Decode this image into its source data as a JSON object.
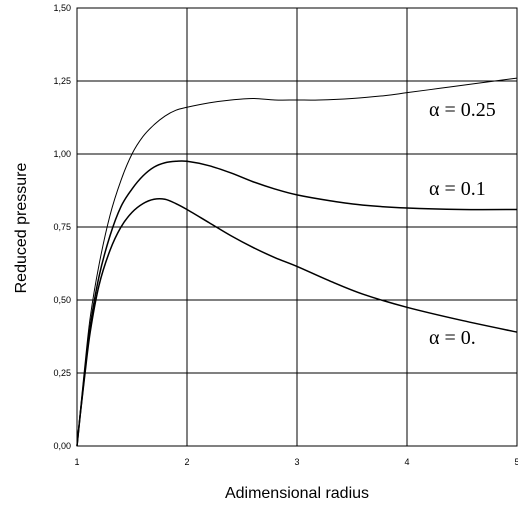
{
  "chart_data": {
    "type": "line",
    "title": "",
    "xlabel": "Adimensional radius",
    "ylabel": "Reduced pressure",
    "xlim": [
      1,
      5
    ],
    "ylim": [
      0,
      1.5
    ],
    "grid": true,
    "x_ticks": [
      {
        "value": 1,
        "label": "1"
      },
      {
        "value": 2,
        "label": "2"
      },
      {
        "value": 3,
        "label": "3"
      },
      {
        "value": 4,
        "label": "4"
      },
      {
        "value": 5,
        "label": "5"
      }
    ],
    "y_ticks": [
      {
        "value": 0,
        "label": "0,00"
      },
      {
        "value": 0.25,
        "label": "0,25"
      },
      {
        "value": 0.5,
        "label": "0,50"
      },
      {
        "value": 0.75,
        "label": "0,75"
      },
      {
        "value": 1.0,
        "label": "1,00"
      },
      {
        "value": 1.25,
        "label": "1,25"
      },
      {
        "value": 1.5,
        "label": "1,50"
      }
    ],
    "series": [
      {
        "name": "α = 0.25",
        "label_at": [
          4.2,
          1.13
        ],
        "points": [
          [
            1.0,
            0.0
          ],
          [
            1.03,
            0.12
          ],
          [
            1.07,
            0.27
          ],
          [
            1.12,
            0.44
          ],
          [
            1.2,
            0.62
          ],
          [
            1.3,
            0.79
          ],
          [
            1.4,
            0.91
          ],
          [
            1.5,
            1.0
          ],
          [
            1.6,
            1.06
          ],
          [
            1.7,
            1.1
          ],
          [
            1.8,
            1.13
          ],
          [
            1.9,
            1.15
          ],
          [
            2.0,
            1.16
          ],
          [
            2.2,
            1.175
          ],
          [
            2.4,
            1.185
          ],
          [
            2.6,
            1.19
          ],
          [
            2.8,
            1.185
          ],
          [
            3.0,
            1.185
          ],
          [
            3.2,
            1.185
          ],
          [
            3.5,
            1.19
          ],
          [
            3.8,
            1.2
          ],
          [
            4.0,
            1.21
          ],
          [
            4.3,
            1.225
          ],
          [
            4.6,
            1.24
          ],
          [
            5.0,
            1.26
          ]
        ]
      },
      {
        "name": "α = 0.1",
        "label_at": [
          4.2,
          0.86
        ],
        "points": [
          [
            1.0,
            0.0
          ],
          [
            1.03,
            0.11
          ],
          [
            1.07,
            0.25
          ],
          [
            1.12,
            0.41
          ],
          [
            1.2,
            0.58
          ],
          [
            1.3,
            0.72
          ],
          [
            1.4,
            0.82
          ],
          [
            1.5,
            0.88
          ],
          [
            1.6,
            0.925
          ],
          [
            1.7,
            0.955
          ],
          [
            1.8,
            0.97
          ],
          [
            1.9,
            0.975
          ],
          [
            2.0,
            0.975
          ],
          [
            2.2,
            0.96
          ],
          [
            2.4,
            0.935
          ],
          [
            2.6,
            0.905
          ],
          [
            2.8,
            0.88
          ],
          [
            3.0,
            0.86
          ],
          [
            3.3,
            0.84
          ],
          [
            3.6,
            0.825
          ],
          [
            4.0,
            0.815
          ],
          [
            4.5,
            0.81
          ],
          [
            5.0,
            0.81
          ]
        ]
      },
      {
        "name": "α = 0.",
        "label_at": [
          4.2,
          0.35
        ],
        "points": [
          [
            1.0,
            0.0
          ],
          [
            1.03,
            0.11
          ],
          [
            1.07,
            0.24
          ],
          [
            1.12,
            0.39
          ],
          [
            1.2,
            0.55
          ],
          [
            1.3,
            0.67
          ],
          [
            1.4,
            0.75
          ],
          [
            1.5,
            0.8
          ],
          [
            1.6,
            0.83
          ],
          [
            1.7,
            0.845
          ],
          [
            1.8,
            0.845
          ],
          [
            1.9,
            0.83
          ],
          [
            2.0,
            0.81
          ],
          [
            2.2,
            0.765
          ],
          [
            2.4,
            0.72
          ],
          [
            2.6,
            0.68
          ],
          [
            2.8,
            0.645
          ],
          [
            3.0,
            0.615
          ],
          [
            3.3,
            0.565
          ],
          [
            3.6,
            0.52
          ],
          [
            4.0,
            0.475
          ],
          [
            4.5,
            0.43
          ],
          [
            5.0,
            0.39
          ]
        ]
      }
    ]
  }
}
